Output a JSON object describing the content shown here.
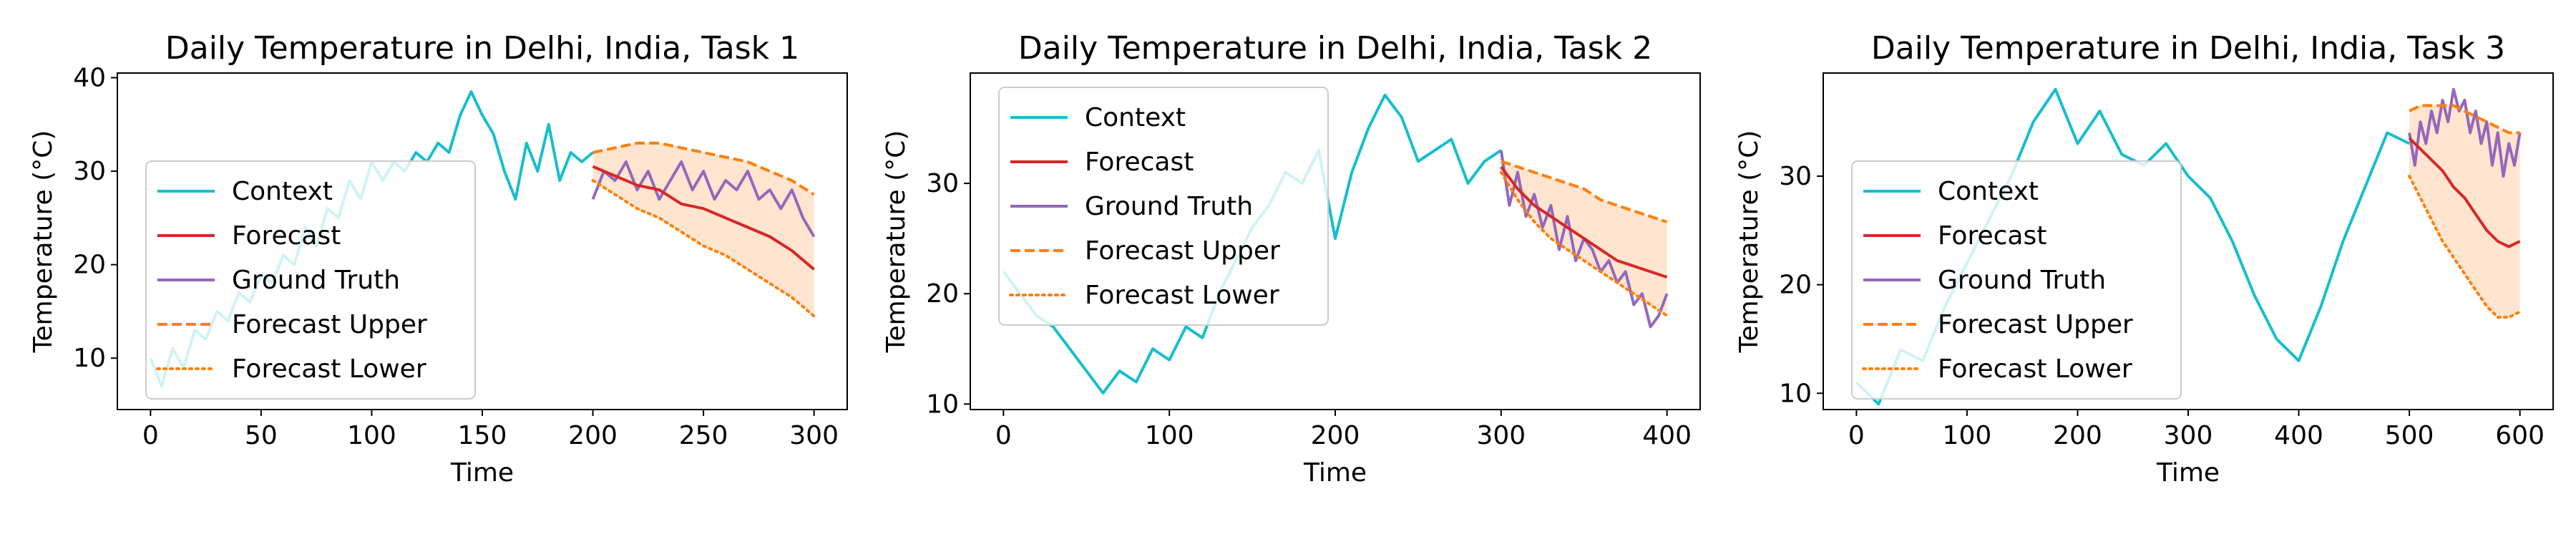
{
  "colors": {
    "context": "#17becf",
    "forecast": "#d62728",
    "ground_truth": "#9467bd",
    "band": "#ff7f0e"
  },
  "legend_labels": [
    "Context",
    "Forecast",
    "Ground Truth",
    "Forecast Upper",
    "Forecast Lower"
  ],
  "chart_data": [
    {
      "type": "line",
      "title": "Daily Temperature in Delhi, India, Task 1",
      "xlabel": "Time",
      "ylabel": "Temperature (°C)",
      "xlim": [
        -15,
        315
      ],
      "ylim": [
        4.5,
        40.5
      ],
      "xticks": [
        0,
        50,
        100,
        150,
        200,
        250,
        300
      ],
      "yticks": [
        10,
        20,
        30,
        40
      ],
      "legend": "left",
      "context": {
        "x": [
          0,
          5,
          10,
          15,
          20,
          25,
          30,
          35,
          40,
          45,
          50,
          55,
          60,
          65,
          70,
          75,
          80,
          85,
          90,
          95,
          100,
          105,
          110,
          115,
          120,
          125,
          130,
          135,
          140,
          145,
          150,
          155,
          160,
          165,
          170,
          175,
          180,
          185,
          190,
          195,
          200
        ],
        "values": [
          10,
          7,
          11,
          9,
          13,
          12,
          15,
          14,
          17,
          16,
          19,
          18,
          21,
          20,
          24,
          22,
          26,
          25,
          29,
          27,
          31,
          29,
          31,
          30,
          32,
          31,
          33,
          32,
          36,
          38.5,
          36,
          34,
          30,
          27,
          33,
          30,
          35,
          29,
          32,
          31,
          32
        ]
      },
      "forecast": {
        "x": [
          200,
          210,
          220,
          230,
          240,
          250,
          260,
          270,
          280,
          290,
          300
        ],
        "values": [
          30.5,
          29.5,
          28.5,
          28,
          26.5,
          26,
          25,
          24,
          23,
          21.5,
          19.5
        ]
      },
      "ground_truth": {
        "x": [
          200,
          205,
          210,
          215,
          220,
          225,
          230,
          235,
          240,
          245,
          250,
          255,
          260,
          265,
          270,
          275,
          280,
          285,
          290,
          295,
          300
        ],
        "values": [
          27,
          30,
          29,
          31,
          28,
          30,
          27,
          29,
          31,
          28,
          30,
          27,
          29,
          28,
          30,
          27,
          28,
          26,
          28,
          25,
          23
        ]
      },
      "upper": {
        "x": [
          200,
          210,
          220,
          230,
          240,
          250,
          260,
          270,
          280,
          290,
          300
        ],
        "values": [
          32,
          32.5,
          33,
          33,
          32.5,
          32,
          31.5,
          31,
          30,
          29,
          27.5
        ]
      },
      "lower": {
        "x": [
          200,
          210,
          220,
          230,
          240,
          250,
          260,
          270,
          280,
          290,
          300
        ],
        "values": [
          29,
          27.5,
          26,
          25,
          23.5,
          22,
          21,
          19.5,
          18,
          16.5,
          14.5
        ]
      }
    },
    {
      "type": "line",
      "title": "Daily Temperature in Delhi, India, Task 2",
      "xlabel": "Time",
      "ylabel": "Temperature (°C)",
      "xlim": [
        -20,
        420
      ],
      "ylim": [
        9.5,
        40
      ],
      "xticks": [
        0,
        100,
        200,
        300,
        400
      ],
      "yticks": [
        10,
        20,
        30
      ],
      "legend": "upper-left",
      "context": {
        "x": [
          0,
          10,
          20,
          30,
          40,
          50,
          60,
          70,
          80,
          90,
          100,
          110,
          120,
          130,
          140,
          150,
          160,
          170,
          180,
          190,
          200,
          210,
          220,
          230,
          240,
          250,
          260,
          270,
          280,
          290,
          300
        ],
        "values": [
          22,
          20,
          18,
          17,
          15,
          13,
          11,
          13,
          12,
          15,
          14,
          17,
          16,
          20,
          23,
          26,
          28,
          31,
          30,
          33,
          25,
          31,
          35,
          38,
          36,
          32,
          33,
          34,
          30,
          32,
          33
        ]
      },
      "forecast": {
        "x": [
          300,
          310,
          320,
          330,
          340,
          350,
          360,
          370,
          380,
          390,
          400
        ],
        "values": [
          31.5,
          29.5,
          28,
          27,
          26,
          25,
          24,
          23,
          22.5,
          22,
          21.5
        ]
      },
      "ground_truth": {
        "x": [
          300,
          305,
          310,
          315,
          320,
          325,
          330,
          335,
          340,
          345,
          350,
          355,
          360,
          365,
          370,
          375,
          380,
          385,
          390,
          395,
          400
        ],
        "values": [
          33,
          28,
          31,
          27,
          29,
          26,
          28,
          24,
          27,
          23,
          25,
          24,
          22,
          23,
          21,
          22,
          19,
          20,
          17,
          18,
          20
        ]
      },
      "upper": {
        "x": [
          300,
          310,
          320,
          330,
          340,
          350,
          360,
          370,
          380,
          390,
          400
        ],
        "values": [
          32,
          31.5,
          31,
          30.5,
          30,
          29.5,
          28.5,
          28,
          27.5,
          27,
          26.5
        ]
      },
      "lower": {
        "x": [
          300,
          310,
          320,
          330,
          340,
          350,
          360,
          370,
          380,
          390,
          400
        ],
        "values": [
          31,
          28.5,
          26.5,
          25,
          24,
          23,
          22,
          21,
          20,
          19,
          18
        ]
      }
    },
    {
      "type": "line",
      "title": "Daily Temperature in Delhi, India, Task 3",
      "xlabel": "Time",
      "ylabel": "Temperature (°C)",
      "xlim": [
        -30,
        630
      ],
      "ylim": [
        8.5,
        39.5
      ],
      "xticks": [
        0,
        100,
        200,
        300,
        400,
        500,
        600
      ],
      "yticks": [
        10,
        20,
        30
      ],
      "legend": "left",
      "context": {
        "x": [
          0,
          20,
          40,
          60,
          80,
          100,
          120,
          140,
          160,
          180,
          200,
          220,
          240,
          260,
          280,
          300,
          320,
          340,
          360,
          380,
          400,
          420,
          440,
          460,
          480,
          500
        ],
        "values": [
          11,
          9,
          14,
          13,
          18,
          22,
          26,
          30,
          35,
          38,
          33,
          36,
          32,
          31,
          33,
          30,
          28,
          24,
          19,
          15,
          13,
          18,
          24,
          29,
          34,
          33
        ]
      },
      "forecast": {
        "x": [
          500,
          510,
          520,
          530,
          540,
          550,
          560,
          570,
          580,
          590,
          600
        ],
        "values": [
          33.5,
          32.5,
          31.5,
          30.5,
          29,
          28,
          26.5,
          25,
          24,
          23.5,
          24
        ]
      },
      "ground_truth": {
        "x": [
          500,
          505,
          510,
          515,
          520,
          525,
          530,
          535,
          540,
          545,
          550,
          555,
          560,
          565,
          570,
          575,
          580,
          585,
          590,
          595,
          600
        ],
        "values": [
          34,
          31,
          35,
          33,
          36,
          34,
          37,
          35,
          38,
          36,
          37,
          34,
          36,
          33,
          35,
          31,
          34,
          30,
          33,
          31,
          34
        ]
      },
      "upper": {
        "x": [
          500,
          510,
          520,
          530,
          540,
          550,
          560,
          570,
          580,
          590,
          600
        ],
        "values": [
          36,
          36.5,
          36.5,
          36.5,
          36.5,
          36,
          35.5,
          35,
          34.5,
          34,
          34
        ]
      },
      "lower": {
        "x": [
          500,
          510,
          520,
          530,
          540,
          550,
          560,
          570,
          580,
          590,
          600
        ],
        "values": [
          30,
          28,
          26,
          24,
          22.5,
          21,
          19.5,
          18,
          17,
          17,
          17.5
        ]
      }
    }
  ]
}
